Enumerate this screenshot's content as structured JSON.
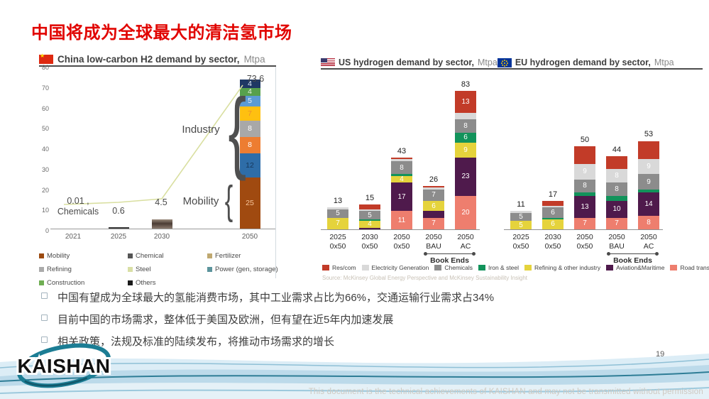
{
  "slide": {
    "title": "中国将成为全球最大的清洁氢市场",
    "page_number": "19",
    "footer_text": "This document is the technical achievements of KAISHAN and may not be transmitted without permission",
    "logo_text": "KAISHAN",
    "bullets": [
      "中国有望成为全球最大的氢能消费市场，其中工业需求占比为66%，交通运输行业需求占34%",
      "目前中国的市场需求，整体低于美国及欧洲，但有望在近5年内加速发展",
      "相关政策，法规及标准的陆续发布，将推动市场需求的增长"
    ]
  },
  "colors": {
    "title_red": "#E10400",
    "accent_teal": "#1C7D94"
  },
  "sectors": {
    "res_com": {
      "label": "Res/com",
      "color": "#C23B28"
    },
    "electricity": {
      "label": "Electricity Generation",
      "color": "#D9D9D9"
    },
    "chemicals": {
      "label": "Chemicals",
      "color": "#8C8C8C"
    },
    "iron_steel": {
      "label": "Iron & steel",
      "color": "#12935B"
    },
    "refining": {
      "label": "Refining & other industry",
      "color": "#E5D33C"
    },
    "aviation": {
      "label": "Aviation&Maritime",
      "color": "#4F1A4C"
    },
    "road": {
      "label": "Road transport",
      "color": "#EE7E6E"
    }
  },
  "sector_order": [
    "res_com",
    "electricity",
    "chemicals",
    "iron_steel",
    "refining",
    "aviation",
    "road"
  ],
  "source": "Source: McKinsey Global Energy Perspective and McKinsey Sustainability Insight",
  "chart_data": [
    {
      "id": "china",
      "type": "bar",
      "region": "China",
      "title": "China low-carbon H2 demand by sector,",
      "unit": "Mtpa",
      "ylim": [
        0,
        80
      ],
      "yticks": [
        0,
        10,
        20,
        30,
        40,
        50,
        60,
        70,
        80
      ],
      "grid": false,
      "legend_position": "bottom",
      "categories": [
        "2021",
        "2025",
        "2030",
        "2050"
      ],
      "totals": [
        0.01,
        0.6,
        4.5,
        73.6
      ],
      "total_labels": [
        "0.01 ,",
        "0.6",
        "4.5",
        "73.6"
      ],
      "annotations": {
        "chemicals": "Chemicals",
        "industry": "Industry",
        "mobility": "Mobility"
      },
      "bars": [
        [],
        [
          {
            "v": 0.6,
            "c": "#3a3a3a"
          }
        ],
        [
          {
            "v": 4.5,
            "c": "grad2030"
          }
        ],
        [
          {
            "v": 25,
            "l": "25",
            "c": "#A04A10",
            "tc": "#F7C59A"
          },
          {
            "v": 12,
            "l": "12",
            "c": "#2E6DA8",
            "tc": "#16375B"
          },
          {
            "v": 8,
            "l": "8",
            "c": "#ED7D31",
            "tc": "#FFFFFF"
          },
          {
            "v": 8,
            "l": "8",
            "c": "#A8A8A8",
            "tc": "#FFFFFF"
          },
          {
            "v": 7,
            "l": "7",
            "c": "#FFC010",
            "tc": "#EE8F2E"
          },
          {
            "v": 5,
            "l": "5",
            "c": "#5B9BD5",
            "tc": "#E7F0F9"
          },
          {
            "v": 4,
            "l": "4",
            "c": "#57A04C",
            "tc": "#E4F1DE"
          },
          {
            "v": 4,
            "l": "4",
            "c": "#1F3864",
            "tc": "#DEEBF7"
          }
        ]
      ],
      "legend": [
        {
          "label": "Mobility",
          "color": "#9C4A10"
        },
        {
          "label": "Chemical",
          "color": "#555555"
        },
        {
          "label": "Fertilizer",
          "color": "#BFA870"
        },
        {
          "label": "Refining",
          "color": "#ABABAB"
        },
        {
          "label": "Steel",
          "color": "#D9DFA5"
        },
        {
          "label": "Power (gen, storage)",
          "color": "#5B949C"
        },
        {
          "label": "Construction",
          "color": "#6FAE53"
        },
        {
          "label": "Others",
          "color": "#1A1A1A"
        }
      ]
    },
    {
      "id": "us",
      "type": "bar",
      "region": "US",
      "title": "US hydrogen demand by sector,",
      "unit": "Mtpa",
      "categories": [
        [
          "2025",
          "0x50"
        ],
        [
          "2030",
          "0x50"
        ],
        [
          "2050",
          "0x50"
        ],
        [
          "2050",
          "BAU"
        ],
        [
          "2050",
          "AC"
        ]
      ],
      "totals": [
        13,
        15,
        43,
        26,
        83
      ],
      "book_ends": {
        "label": "Book Ends",
        "from_index": 3,
        "to_index": 4
      },
      "bars": [
        [
          {
            "s": "refining",
            "v": 7,
            "l": "7"
          },
          {
            "s": "chemicals",
            "v": 5,
            "l": "5"
          },
          {
            "s": "electricity",
            "v": 1
          }
        ],
        [
          {
            "s": "aviation",
            "v": 1
          },
          {
            "s": "refining",
            "v": 4,
            "l": "4"
          },
          {
            "s": "iron_steel",
            "v": 1
          },
          {
            "s": "chemicals",
            "v": 5,
            "l": "5"
          },
          {
            "s": "electricity",
            "v": 1
          },
          {
            "s": "res_com",
            "v": 3
          }
        ],
        [
          {
            "s": "road",
            "v": 11,
            "l": "11"
          },
          {
            "s": "aviation",
            "v": 17,
            "l": "17"
          },
          {
            "s": "refining",
            "v": 4,
            "l": "4"
          },
          {
            "s": "iron_steel",
            "v": 1
          },
          {
            "s": "chemicals",
            "v": 8,
            "l": "8"
          },
          {
            "s": "electricity",
            "v": 1
          },
          {
            "s": "res_com",
            "v": 1
          }
        ],
        [
          {
            "s": "road",
            "v": 7,
            "l": "7"
          },
          {
            "s": "aviation",
            "v": 4
          },
          {
            "s": "refining",
            "v": 6,
            "l": "6"
          },
          {
            "s": "chemicals",
            "v": 7,
            "l": "7"
          },
          {
            "s": "electricity",
            "v": 1
          },
          {
            "s": "res_com",
            "v": 1
          }
        ],
        [
          {
            "s": "road",
            "v": 20,
            "l": "20"
          },
          {
            "s": "aviation",
            "v": 23,
            "l": "23"
          },
          {
            "s": "refining",
            "v": 9,
            "l": "9"
          },
          {
            "s": "iron_steel",
            "v": 6,
            "l": "6"
          },
          {
            "s": "chemicals",
            "v": 8,
            "l": "8"
          },
          {
            "s": "electricity",
            "v": 4
          },
          {
            "s": "res_com",
            "v": 13,
            "l": "13"
          }
        ]
      ]
    },
    {
      "id": "eu",
      "type": "bar",
      "region": "EU",
      "title": "EU hydrogen demand by sector,",
      "unit": "Mtpa",
      "categories": [
        [
          "2025",
          "0x50"
        ],
        [
          "2030",
          "0x50"
        ],
        [
          "2050",
          "0x50"
        ],
        [
          "2050",
          "BAU"
        ],
        [
          "2050",
          "AC"
        ]
      ],
      "totals": [
        11,
        17,
        50,
        44,
        53
      ],
      "book_ends": {
        "label": "Book Ends",
        "from_index": 3,
        "to_index": 4
      },
      "bars": [
        [
          {
            "s": "refining",
            "v": 5,
            "l": "5"
          },
          {
            "s": "chemicals",
            "v": 5,
            "l": "5"
          },
          {
            "s": "electricity",
            "v": 1
          }
        ],
        [
          {
            "s": "refining",
            "v": 6,
            "l": "6"
          },
          {
            "s": "iron_steel",
            "v": 1
          },
          {
            "s": "chemicals",
            "v": 6,
            "l": "6"
          },
          {
            "s": "electricity",
            "v": 1
          },
          {
            "s": "res_com",
            "v": 3
          }
        ],
        [
          {
            "s": "road",
            "v": 7,
            "l": "7"
          },
          {
            "s": "aviation",
            "v": 13,
            "l": "13"
          },
          {
            "s": "iron_steel",
            "v": 2
          },
          {
            "s": "chemicals",
            "v": 8,
            "l": "8"
          },
          {
            "s": "electricity",
            "v": 9,
            "l": "9"
          },
          {
            "s": "res_com",
            "v": 11
          }
        ],
        [
          {
            "s": "road",
            "v": 7,
            "l": "7"
          },
          {
            "s": "aviation",
            "v": 10,
            "l": "10"
          },
          {
            "s": "iron_steel",
            "v": 3
          },
          {
            "s": "chemicals",
            "v": 8,
            "l": "8"
          },
          {
            "s": "electricity",
            "v": 8,
            "l": "8"
          },
          {
            "s": "res_com",
            "v": 8
          }
        ],
        [
          {
            "s": "road",
            "v": 8,
            "l": "8"
          },
          {
            "s": "aviation",
            "v": 14,
            "l": "14"
          },
          {
            "s": "iron_steel",
            "v": 2
          },
          {
            "s": "chemicals",
            "v": 9,
            "l": "9"
          },
          {
            "s": "electricity",
            "v": 9,
            "l": "9"
          },
          {
            "s": "res_com",
            "v": 11
          }
        ]
      ]
    }
  ]
}
